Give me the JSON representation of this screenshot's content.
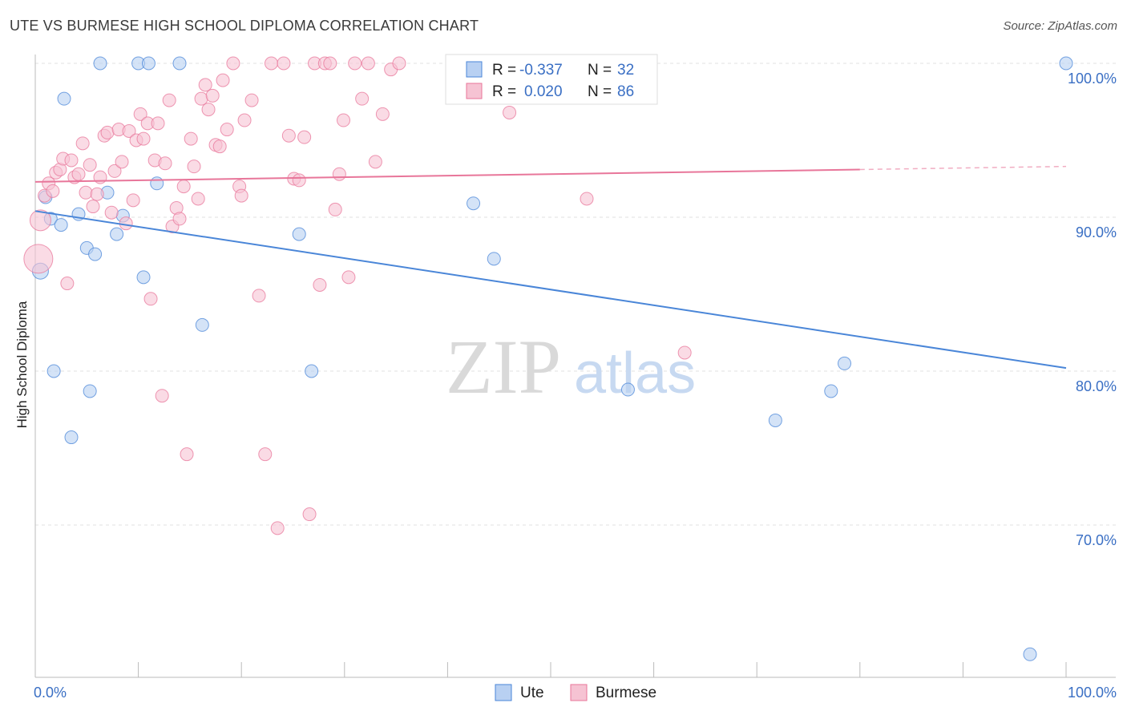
{
  "title": "UTE VS BURMESE HIGH SCHOOL DIPLOMA CORRELATION CHART",
  "source": "Source: ZipAtlas.com",
  "colors": {
    "ute": "#4a86d8",
    "burmese": "#e8769a",
    "ute_fill": "#b8d0f2",
    "burmese_fill": "#f6c3d3",
    "tick": "#3a6fc4"
  },
  "watermark": {
    "zip": "ZIP",
    "atlas": "atlas"
  },
  "legend": {
    "r_label": "R =",
    "n_label": "N =",
    "rows": [
      {
        "series": "ute",
        "r": "-0.337",
        "n": "32"
      },
      {
        "series": "burmese",
        "r": "0.020",
        "n": "86"
      }
    ]
  },
  "bottom_legend": [
    "Ute",
    "Burmese"
  ],
  "chart_data": {
    "type": "scatter",
    "title": "UTE VS BURMESE HIGH SCHOOL DIPLOMA CORRELATION CHART",
    "xlabel": "",
    "ylabel": "High School Diploma",
    "xlim": [
      0,
      100
    ],
    "ylim": [
      61,
      102
    ],
    "x_tick_labels": [
      "0.0%",
      "100.0%"
    ],
    "y_ticks": [
      70,
      80,
      90,
      100
    ],
    "y_tick_labels": [
      "70.0%",
      "80.0%",
      "90.0%",
      "100.0%"
    ],
    "grid": true,
    "legend_position": "top-center",
    "series": [
      {
        "name": "Ute",
        "trend": [
          [
            0,
            90.4
          ],
          [
            100,
            80.2
          ]
        ],
        "points": [
          [
            0.5,
            86.5
          ],
          [
            1.0,
            91.3
          ],
          [
            1.5,
            89.9
          ],
          [
            1.8,
            80.0
          ],
          [
            2.5,
            89.5
          ],
          [
            2.8,
            97.7
          ],
          [
            3.5,
            75.7
          ],
          [
            4.2,
            90.2
          ],
          [
            5.0,
            88.0
          ],
          [
            5.3,
            78.7
          ],
          [
            5.8,
            87.6
          ],
          [
            6.3,
            100.0
          ],
          [
            7.0,
            91.6
          ],
          [
            7.9,
            88.9
          ],
          [
            8.5,
            90.1
          ],
          [
            10.0,
            100.0
          ],
          [
            10.5,
            86.1
          ],
          [
            11.0,
            100.0
          ],
          [
            11.8,
            92.2
          ],
          [
            14.0,
            100.0
          ],
          [
            16.2,
            83.0
          ],
          [
            25.6,
            88.9
          ],
          [
            26.8,
            80.0
          ],
          [
            42.5,
            90.9
          ],
          [
            44.5,
            87.3
          ],
          [
            51.8,
            100.0
          ],
          [
            57.5,
            78.8
          ],
          [
            77.2,
            78.7
          ],
          [
            71.8,
            76.8
          ],
          [
            78.5,
            80.5
          ],
          [
            96.5,
            61.6
          ],
          [
            100.0,
            100.0
          ]
        ]
      },
      {
        "name": "Burmese",
        "trend": [
          [
            0,
            92.3
          ],
          [
            80,
            93.1
          ]
        ],
        "trend_dashed": [
          [
            80,
            93.1
          ],
          [
            100,
            93.3
          ]
        ],
        "points": [
          [
            0.3,
            87.3
          ],
          [
            0.5,
            89.8
          ],
          [
            0.9,
            91.4
          ],
          [
            1.3,
            92.2
          ],
          [
            1.7,
            91.7
          ],
          [
            2.0,
            92.9
          ],
          [
            2.4,
            93.1
          ],
          [
            2.7,
            93.8
          ],
          [
            3.1,
            85.7
          ],
          [
            3.5,
            93.7
          ],
          [
            3.8,
            92.6
          ],
          [
            4.2,
            92.8
          ],
          [
            4.6,
            94.8
          ],
          [
            4.9,
            91.6
          ],
          [
            5.3,
            93.4
          ],
          [
            5.6,
            90.7
          ],
          [
            6.0,
            91.5
          ],
          [
            6.3,
            92.6
          ],
          [
            6.7,
            95.3
          ],
          [
            7.0,
            95.5
          ],
          [
            7.4,
            90.3
          ],
          [
            7.7,
            93.0
          ],
          [
            8.1,
            95.7
          ],
          [
            8.4,
            93.6
          ],
          [
            8.8,
            89.6
          ],
          [
            9.1,
            95.6
          ],
          [
            9.5,
            91.1
          ],
          [
            9.8,
            95.0
          ],
          [
            10.2,
            96.7
          ],
          [
            10.5,
            95.1
          ],
          [
            10.9,
            96.1
          ],
          [
            11.2,
            84.7
          ],
          [
            11.6,
            93.7
          ],
          [
            11.9,
            96.1
          ],
          [
            12.3,
            78.4
          ],
          [
            12.6,
            93.5
          ],
          [
            13.0,
            97.6
          ],
          [
            13.3,
            89.4
          ],
          [
            13.7,
            90.6
          ],
          [
            14.0,
            89.9
          ],
          [
            14.4,
            92.0
          ],
          [
            14.7,
            74.6
          ],
          [
            15.1,
            95.1
          ],
          [
            15.4,
            93.3
          ],
          [
            15.8,
            91.2
          ],
          [
            16.1,
            97.7
          ],
          [
            16.5,
            98.6
          ],
          [
            16.8,
            97.0
          ],
          [
            17.2,
            97.9
          ],
          [
            17.5,
            94.7
          ],
          [
            17.9,
            94.6
          ],
          [
            18.2,
            98.9
          ],
          [
            18.6,
            95.7
          ],
          [
            19.2,
            100.0
          ],
          [
            19.8,
            92.0
          ],
          [
            20.3,
            96.3
          ],
          [
            21.0,
            97.6
          ],
          [
            21.7,
            84.9
          ],
          [
            22.3,
            74.6
          ],
          [
            22.9,
            100.0
          ],
          [
            23.5,
            69.8
          ],
          [
            24.1,
            100.0
          ],
          [
            24.6,
            95.3
          ],
          [
            25.1,
            92.5
          ],
          [
            25.6,
            92.4
          ],
          [
            26.1,
            95.2
          ],
          [
            26.6,
            70.7
          ],
          [
            27.1,
            100.0
          ],
          [
            27.6,
            85.6
          ],
          [
            28.1,
            100.0
          ],
          [
            28.6,
            100.0
          ],
          [
            29.1,
            90.5
          ],
          [
            29.5,
            92.8
          ],
          [
            29.9,
            96.3
          ],
          [
            30.4,
            86.1
          ],
          [
            31.0,
            100.0
          ],
          [
            31.7,
            97.7
          ],
          [
            32.3,
            100.0
          ],
          [
            33.0,
            93.6
          ],
          [
            33.7,
            96.7
          ],
          [
            34.5,
            99.6
          ],
          [
            35.3,
            100.0
          ],
          [
            46.0,
            96.8
          ],
          [
            53.5,
            91.2
          ],
          [
            63.0,
            81.2
          ],
          [
            20.0,
            91.4
          ]
        ]
      }
    ]
  }
}
